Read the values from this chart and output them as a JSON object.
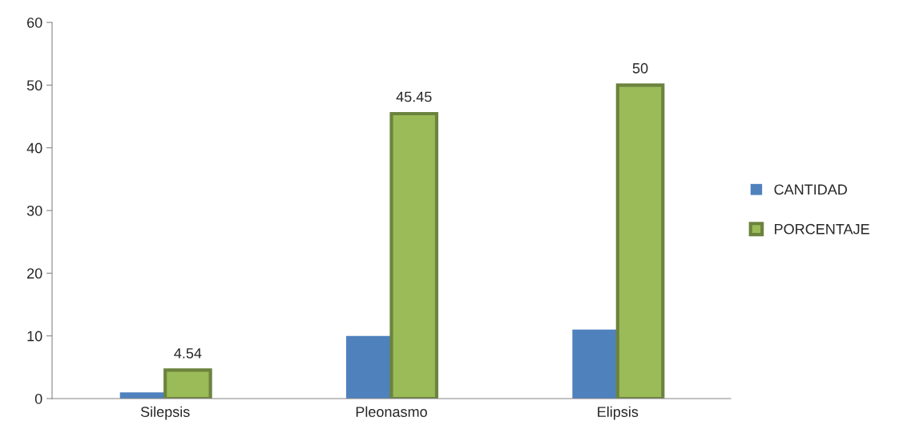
{
  "chart_data": {
    "type": "bar",
    "categories": [
      "Silepsis",
      "Pleonasmo",
      "Elipsis"
    ],
    "series": [
      {
        "name": "CANTIDAD",
        "color": "#4f81bd",
        "values": [
          1,
          10,
          11
        ]
      },
      {
        "name": "PORCENTAJE",
        "color": "#9bbb59",
        "values": [
          4.54,
          45.45,
          50
        ],
        "value_labels": [
          "4.54",
          "45.45",
          "50"
        ]
      }
    ],
    "ylim": [
      0,
      60
    ],
    "yticks": [
      0,
      10,
      20,
      30,
      40,
      50,
      60
    ],
    "grid": false,
    "legend": "right"
  }
}
